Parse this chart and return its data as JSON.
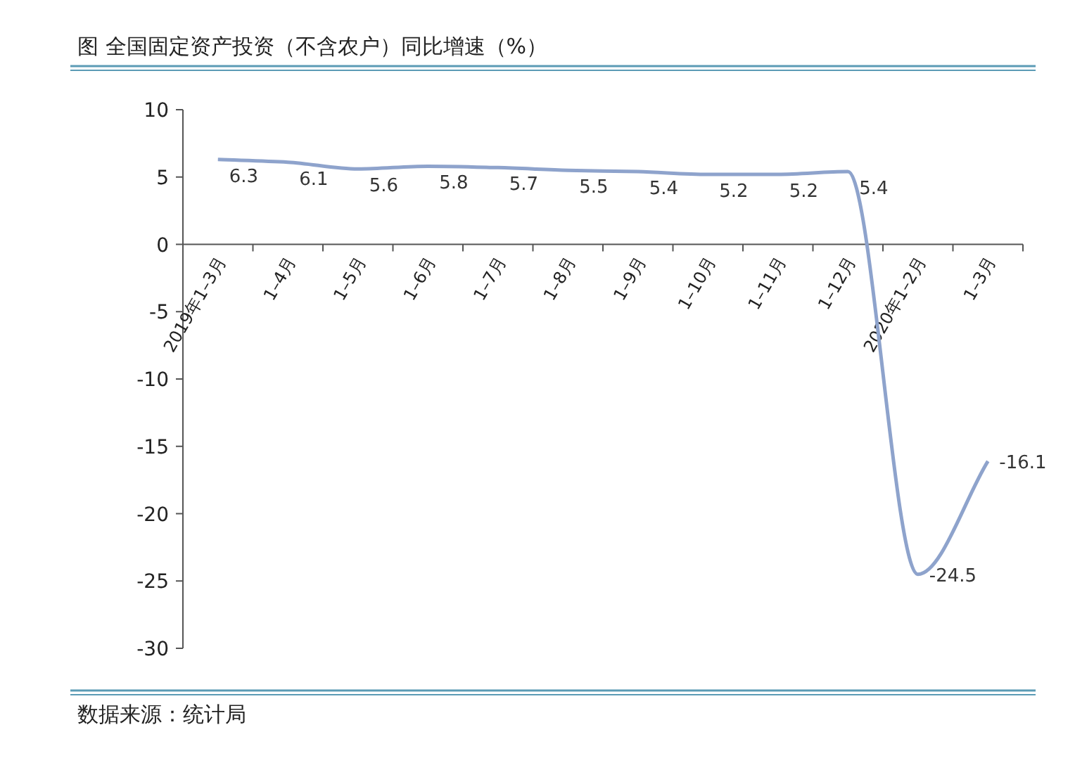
{
  "chart_data": {
    "type": "line",
    "title": "图  全国固定资产投资（不含农户）同比增速（%）",
    "categories": [
      "2019年1–3月",
      "1–4月",
      "1–5月",
      "1–6月",
      "1–7月",
      "1–8月",
      "1–9月",
      "1–10月",
      "1–11月",
      "1–12月",
      "2020年1–2月",
      "1–3月"
    ],
    "series": [
      {
        "color": "#8ea3cc",
        "values": [
          6.3,
          6.1,
          5.6,
          5.8,
          5.7,
          5.5,
          5.4,
          5.2,
          5.2,
          5.4,
          -24.5,
          -16.1
        ]
      }
    ],
    "ylim": [
      -30,
      10
    ],
    "yticks": [
      -30,
      -25,
      -20,
      -15,
      -10,
      -5,
      0,
      5,
      10
    ],
    "data_labels": true,
    "grid": false,
    "annotations": [
      "数据来源：统计局"
    ]
  }
}
